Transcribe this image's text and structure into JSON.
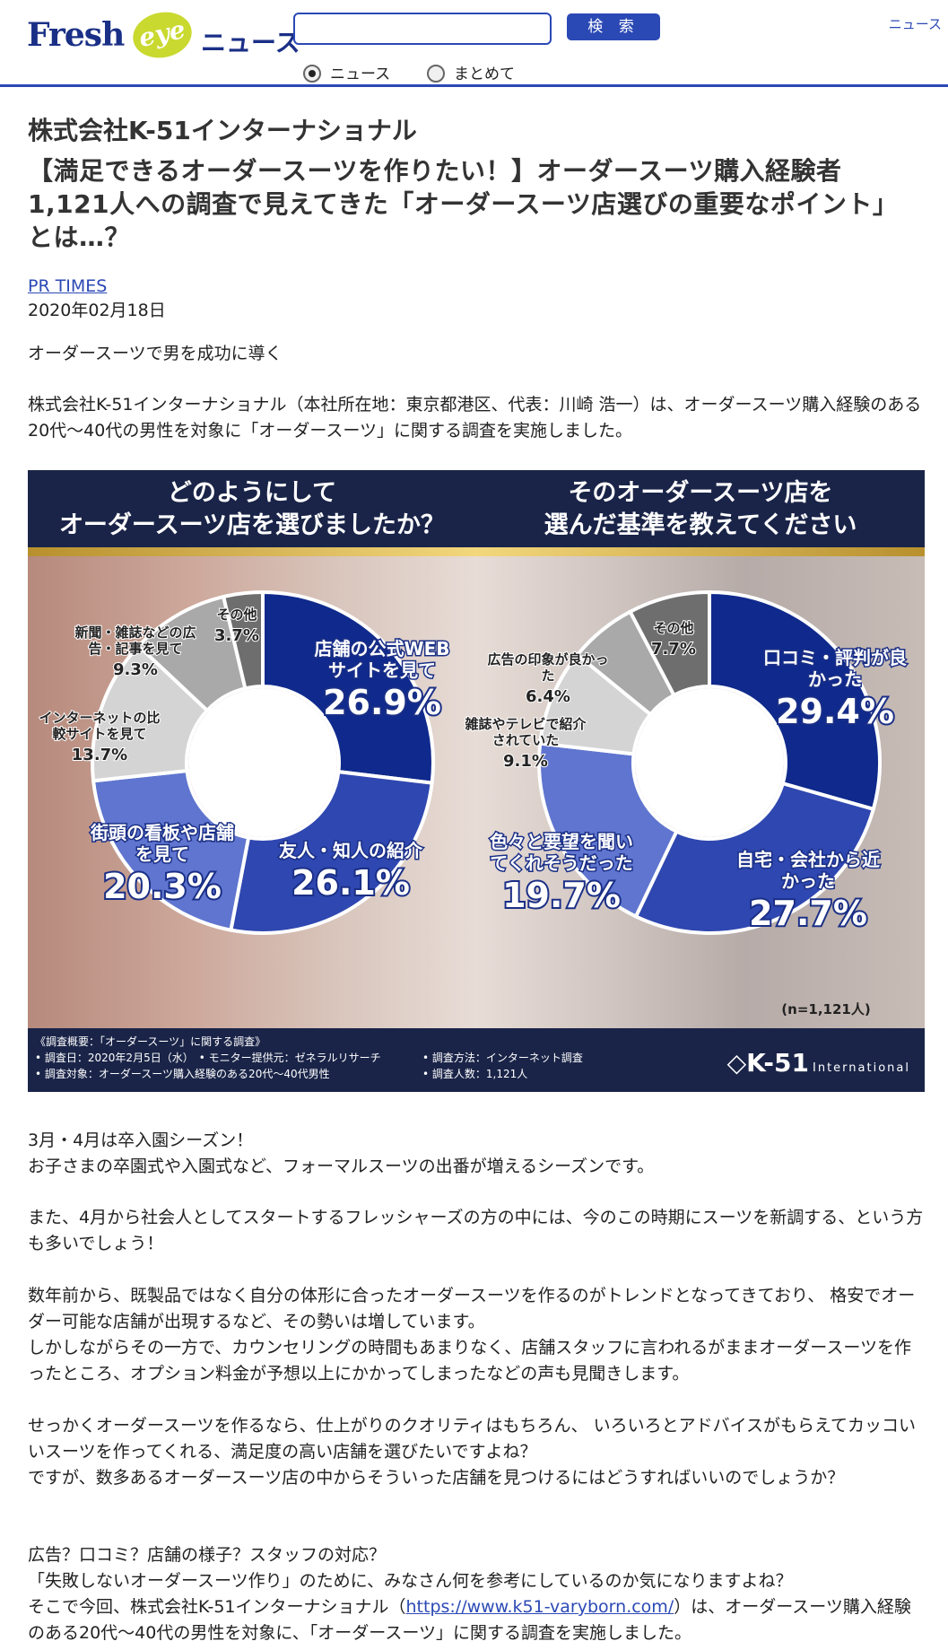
{
  "header": {
    "logo_fresh": "Fresh",
    "logo_eye": "eye",
    "logo_news": "ニュース",
    "search_placeholder": "",
    "search_button": "検 索",
    "radio_news": "ニュース",
    "radio_all": "まとめて",
    "corner_link": "ニュース"
  },
  "article": {
    "company": "株式会社K-51インターナショナル",
    "title": "【満足できるオーダースーツを作りたい！】オーダースーツ購入経験者1,121人への調査で見えてきた「オーダースーツ店選びの重要なポイント」とは…？",
    "source": "PR TIMES",
    "date": "2020年02月18日",
    "lead": "オーダースーツで男を成功に導く",
    "intro": "株式会社K-51インターナショナル（本社所在地：東京都港区、代表：川崎 浩一）は、オーダースーツ購入経験のある20代〜40代の男性を対象に「オーダースーツ」に関する調査を実施しました。",
    "p1a": "3月・4月は卒入園シーズン！",
    "p1b": "お子さまの卒園式や入園式など、フォーマルスーツの出番が増えるシーズンです。",
    "p2": "また、4月から社会人としてスタートするフレッシャーズの方の中には、今のこの時期にスーツを新調する、という方も多いでしょう！",
    "p3a": "数年前から、既製品ではなく自分の体形に合ったオーダースーツを作るのがトレンドとなってきており、 格安でオーダー可能な店舗が出現するなど、その勢いは増しています。",
    "p3b": "しかしながらその一方で、カウンセリングの時間もあまりなく、店舗スタッフに言われるがままオーダースーツを作ったところ、オプション料金が予想以上にかかってしまったなどの声も見聞きします。",
    "p4a": "せっかくオーダースーツを作るなら、仕上がりのクオリティはもちろん、 いろいろとアドバイスがもらえてカッコいいスーツを作ってくれる、満足度の高い店舗を選びたいですよね？",
    "p4b": "ですが、数多あるオーダースーツ店の中からそういった店舗を見つけるにはどうすればいいのでしょうか？",
    "p5a": "広告？口コミ？店舗の様子？スタッフの対応？",
    "p5b": "「失敗しないオーダースーツ作り」のために、みなさん何を参考にしているのか気になりますよね？",
    "p5c_pre": "そこで今回、株式会社K-51インターナショナル（",
    "p5c_link": "https://www.k51-varyborn.com/",
    "p5c_post": "）は、オーダースーツ購入経験のある20代〜40代の男性を対象に、「オーダースーツ」に関する調査を実施しました。"
  },
  "figure": {
    "q_left_1": "どのようにして",
    "q_left_2": "オーダースーツ店を選びましたか？",
    "q_right_1": "そのオーダースーツ店を",
    "q_right_2": "選んだ基準を教えてください",
    "n_note": "(n=1,121人)",
    "foot_1": "《調査概要：「オーダースーツ」に関する調査》",
    "foot_2": "• 調査日：2020年2月5日（水）　• モニター提供元：ゼネラルリサーチ",
    "foot_3": "• 調査対象：オーダースーツ購入経験のある20代〜40代男性",
    "foot_4": "• 調査方法：インターネット調査",
    "foot_5": "• 調査人数：1,121人",
    "brand": "K-51",
    "brand_sub": "International"
  },
  "chart_data": [
    {
      "type": "pie",
      "title": "どのようにしてオーダースーツ店を選びましたか？",
      "categories": [
        "店舗の公式WEBサイトを見て",
        "友人・知人の紹介",
        "街頭の看板や店舗を見て",
        "インターネットの比較サイトを見て",
        "新聞・雑誌などの広告・記事を見て",
        "その他"
      ],
      "values": [
        26.9,
        26.1,
        20.3,
        13.7,
        9.3,
        3.7
      ],
      "value_labels": [
        "26.9%",
        "26.1%",
        "20.3%",
        "13.7%",
        "9.3%",
        "3.7%"
      ],
      "colors": [
        "#0f2a8c",
        "#2f47b0",
        "#5f75cf",
        "#d4d4d4",
        "#a9a9a9",
        "#6e6e6e"
      ]
    },
    {
      "type": "pie",
      "title": "そのオーダースーツ店を選んだ基準を教えてください",
      "categories": [
        "口コミ・評判が良かった",
        "自宅・会社から近かった",
        "色々と要望を聞いてくれそうだった",
        "雑誌やテレビで紹介されていた",
        "広告の印象が良かった",
        "その他"
      ],
      "values": [
        29.4,
        27.7,
        19.7,
        9.1,
        6.4,
        7.7
      ],
      "value_labels": [
        "29.4%",
        "27.7%",
        "19.7%",
        "9.1%",
        "6.4%",
        "7.7%"
      ],
      "colors": [
        "#0f2a8c",
        "#2f47b0",
        "#5f75cf",
        "#d4d4d4",
        "#a9a9a9",
        "#6e6e6e"
      ]
    }
  ]
}
